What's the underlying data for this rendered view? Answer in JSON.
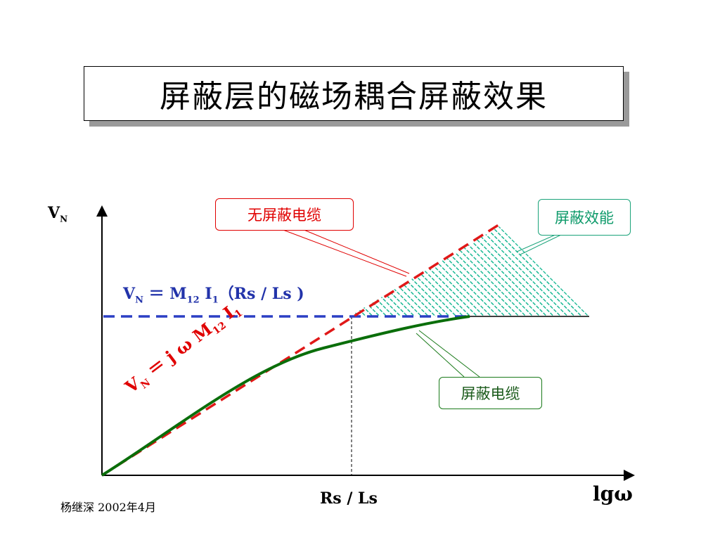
{
  "title": "屏蔽层的磁场耦合屏蔽效果",
  "axes": {
    "y_label_main": "V",
    "y_label_sub": "N",
    "x_label": "lgω",
    "x_mark_label": "Rs / Ls"
  },
  "formula_plateau": {
    "v": "V",
    "v_sub": "N",
    "eq": " ＝ M",
    "m_sub": "12",
    "i": " I",
    "i_sub": "1",
    "rest": "（Rs / Ls )"
  },
  "formula_slope": {
    "v": "V",
    "v_sub": "N",
    "eq": " ＝ j ω M",
    "m_sub": "12",
    "i": " I",
    "i_sub": "1"
  },
  "callouts": {
    "unshielded": "无屏蔽电缆",
    "effectiveness": "屏蔽效能",
    "shielded": "屏蔽电缆"
  },
  "footer": "杨继深  2002年4月",
  "colors": {
    "axis": "#000000",
    "unshielded_line": "#e01818",
    "plateau_line": "#2b3fc4",
    "shielded_curve": "#0a6e0a",
    "hatch": "#19b894",
    "callout_red": "#e00000",
    "callout_teal": "#1aa37a",
    "callout_green": "#1a7a1a"
  }
}
